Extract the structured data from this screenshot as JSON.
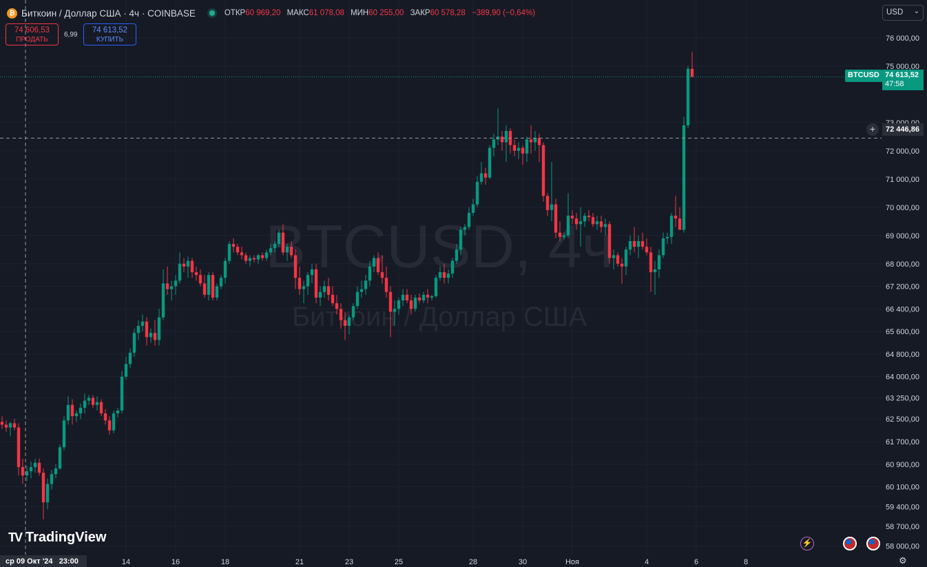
{
  "header": {
    "title": "Биткоин / Доллар США · 4ч · COINBASE",
    "ohlc": [
      {
        "key": "ОТКР",
        "value": "60 969,20"
      },
      {
        "key": "МАКС",
        "value": "61 078,08"
      },
      {
        "key": "МИН",
        "value": "60 255,00"
      },
      {
        "key": "ЗАКР",
        "value": "60 578,28"
      }
    ],
    "change": "−389,90 (−0,64%)"
  },
  "trade": {
    "sell_price": "74 606,53",
    "sell_label": "ПРОДАТЬ",
    "spread": "6,99",
    "buy_price": "74 613,52",
    "buy_label": "КУПИТЬ"
  },
  "currency": "USD",
  "logo": "TradingView",
  "watermark": {
    "symbol": "BTCUSD, 4ч",
    "name": "Биткоин / Доллар США"
  },
  "price_tag": {
    "symbol": "BTCUSD",
    "price": "74 613,52",
    "countdown": "47:58"
  },
  "crosshair": {
    "price": "72 446,86",
    "date": "ср 09 Окт '24",
    "time": "23:00"
  },
  "colors": {
    "up": "#089981",
    "down": "#f23645",
    "background": "#161a25"
  },
  "chart_data": {
    "type": "candlestick",
    "symbol": "BTCUSD",
    "timeframe": "4h",
    "ylim": [
      57700,
      76800
    ],
    "current_price": 74613.52,
    "crosshair_price": 72446.86,
    "y_ticks": [
      {
        "value": 76000,
        "label": "76 000,00"
      },
      {
        "value": 75000,
        "label": "75 000,00"
      },
      {
        "value": 73000,
        "label": "73 000,00"
      },
      {
        "value": 72000,
        "label": "72 000,00"
      },
      {
        "value": 71000,
        "label": "71 000,00"
      },
      {
        "value": 70000,
        "label": "70 000,00"
      },
      {
        "value": 69000,
        "label": "69 000,00"
      },
      {
        "value": 68000,
        "label": "68 000,00"
      },
      {
        "value": 67200,
        "label": "67 200,00"
      },
      {
        "value": 66400,
        "label": "66 400,00"
      },
      {
        "value": 65600,
        "label": "65 600,00"
      },
      {
        "value": 64800,
        "label": "64 800,00"
      },
      {
        "value": 64000,
        "label": "64 000,00"
      },
      {
        "value": 63250,
        "label": "63 250,00"
      },
      {
        "value": 62500,
        "label": "62 500,00"
      },
      {
        "value": 61700,
        "label": "61 700,00"
      },
      {
        "value": 60900,
        "label": "60 900,00"
      },
      {
        "value": 60100,
        "label": "60 100,00"
      },
      {
        "value": 59400,
        "label": "59 400,00"
      },
      {
        "value": 58700,
        "label": "58 700,00"
      },
      {
        "value": 58000,
        "label": "58 000,00"
      }
    ],
    "x_ticks": [
      {
        "index": 30,
        "label": "14"
      },
      {
        "index": 42,
        "label": "16"
      },
      {
        "index": 54,
        "label": "18"
      },
      {
        "index": 72,
        "label": "21"
      },
      {
        "index": 84,
        "label": "23"
      },
      {
        "index": 96,
        "label": "25"
      },
      {
        "index": 114,
        "label": "28"
      },
      {
        "index": 126,
        "label": "30"
      },
      {
        "index": 138,
        "label": "Ноя"
      },
      {
        "index": 156,
        "label": "4"
      },
      {
        "index": 168,
        "label": "6"
      },
      {
        "index": 180,
        "label": "8"
      }
    ],
    "candles": [
      [
        62400,
        62600,
        62150,
        62300
      ],
      [
        62300,
        62450,
        62050,
        62200
      ],
      [
        62200,
        62400,
        61900,
        62350
      ],
      [
        62350,
        62500,
        62100,
        62200
      ],
      [
        62200,
        62350,
        60500,
        60800
      ],
      [
        60800,
        61100,
        60200,
        60500
      ],
      [
        60500,
        60850,
        60300,
        60650
      ],
      [
        60650,
        61000,
        60400,
        60800
      ],
      [
        60800,
        61100,
        60600,
        60950
      ],
      [
        60950,
        61100,
        60500,
        60600
      ],
      [
        60600,
        60750,
        58950,
        59550
      ],
      [
        59550,
        60400,
        59300,
        60200
      ],
      [
        60200,
        60700,
        60000,
        60550
      ],
      [
        60550,
        60900,
        60400,
        60750
      ],
      [
        60750,
        61600,
        60700,
        61500
      ],
      [
        61500,
        62600,
        61400,
        62450
      ],
      [
        62450,
        63300,
        62300,
        63000
      ],
      [
        63000,
        63200,
        62300,
        62600
      ],
      [
        62600,
        62800,
        62400,
        62700
      ],
      [
        62700,
        63050,
        62500,
        62900
      ],
      [
        62900,
        63400,
        62700,
        63150
      ],
      [
        63150,
        63350,
        63000,
        63250
      ],
      [
        63250,
        63350,
        62900,
        63000
      ],
      [
        63000,
        63300,
        62800,
        63100
      ],
      [
        63100,
        63200,
        62600,
        62700
      ],
      [
        62700,
        62850,
        62300,
        62450
      ],
      [
        62450,
        62600,
        61950,
        62100
      ],
      [
        62100,
        62800,
        62000,
        62700
      ],
      [
        62700,
        62900,
        62550,
        62800
      ],
      [
        62800,
        64200,
        62700,
        64000
      ],
      [
        64000,
        64700,
        63900,
        64450
      ],
      [
        64450,
        65000,
        64300,
        64850
      ],
      [
        64850,
        65700,
        64700,
        65550
      ],
      [
        65550,
        66000,
        65300,
        65800
      ],
      [
        65800,
        66200,
        65600,
        65950
      ],
      [
        65950,
        66100,
        65100,
        65400
      ],
      [
        65400,
        65700,
        65200,
        65550
      ],
      [
        65550,
        66000,
        65100,
        65300
      ],
      [
        65300,
        66400,
        65100,
        66100
      ],
      [
        66100,
        67800,
        66000,
        67300
      ],
      [
        67300,
        67900,
        66900,
        67100
      ],
      [
        67100,
        67400,
        66700,
        67200
      ],
      [
        67200,
        67600,
        66900,
        67400
      ],
      [
        67400,
        68400,
        67300,
        68000
      ],
      [
        68000,
        68200,
        67700,
        67900
      ],
      [
        67900,
        68250,
        67500,
        68100
      ],
      [
        68100,
        68200,
        67500,
        67700
      ],
      [
        67700,
        67900,
        67400,
        67600
      ],
      [
        67600,
        67800,
        67200,
        67300
      ],
      [
        67300,
        67600,
        66800,
        66900
      ],
      [
        66900,
        67700,
        66700,
        67600
      ],
      [
        67600,
        67700,
        66700,
        66800
      ],
      [
        66800,
        67300,
        66700,
        67200
      ],
      [
        67200,
        67600,
        67100,
        67500
      ],
      [
        67500,
        68200,
        67300,
        68100
      ],
      [
        68100,
        68800,
        68000,
        68700
      ],
      [
        68700,
        68900,
        68400,
        68600
      ],
      [
        68600,
        68700,
        68300,
        68400
      ],
      [
        68400,
        68600,
        68150,
        68300
      ],
      [
        68300,
        68400,
        68000,
        68100
      ],
      [
        68100,
        68300,
        67900,
        68200
      ],
      [
        68200,
        68300,
        68050,
        68150
      ],
      [
        68150,
        68350,
        68000,
        68300
      ],
      [
        68300,
        68400,
        68100,
        68200
      ],
      [
        68200,
        68500,
        68100,
        68400
      ],
      [
        68400,
        68700,
        68300,
        68550
      ],
      [
        68550,
        68800,
        68400,
        68700
      ],
      [
        68700,
        69200,
        68600,
        69100
      ],
      [
        69100,
        69400,
        68300,
        68400
      ],
      [
        68400,
        68700,
        68100,
        68600
      ],
      [
        68600,
        68800,
        68200,
        68300
      ],
      [
        68300,
        68500,
        67100,
        67500
      ],
      [
        67500,
        67900,
        66900,
        67100
      ],
      [
        67100,
        67400,
        66600,
        67200
      ],
      [
        67200,
        67700,
        66900,
        67600
      ],
      [
        67600,
        68000,
        67300,
        67800
      ],
      [
        67800,
        68000,
        66600,
        66800
      ],
      [
        66800,
        67200,
        66500,
        67000
      ],
      [
        67000,
        67400,
        66800,
        67200
      ],
      [
        67200,
        67500,
        66700,
        66900
      ],
      [
        66900,
        67200,
        66500,
        66600
      ],
      [
        66600,
        66900,
        66200,
        66400
      ],
      [
        66400,
        66600,
        65700,
        66000
      ],
      [
        66000,
        66300,
        65300,
        65800
      ],
      [
        65800,
        66200,
        65500,
        66100
      ],
      [
        66100,
        66600,
        66000,
        66500
      ],
      [
        66500,
        67200,
        66400,
        67000
      ],
      [
        67000,
        67400,
        66800,
        67100
      ],
      [
        67100,
        67600,
        66900,
        67400
      ],
      [
        67400,
        68100,
        67200,
        67900
      ],
      [
        67900,
        68300,
        67700,
        68200
      ],
      [
        68200,
        68400,
        67600,
        67700
      ],
      [
        67700,
        68300,
        67300,
        67500
      ],
      [
        67500,
        67900,
        66800,
        67000
      ],
      [
        67000,
        67200,
        65400,
        66300
      ],
      [
        66300,
        66700,
        65800,
        66400
      ],
      [
        66400,
        66800,
        66200,
        66700
      ],
      [
        66700,
        67100,
        66500,
        66900
      ],
      [
        66900,
        67100,
        66600,
        66700
      ],
      [
        66700,
        66900,
        66200,
        66400
      ],
      [
        66400,
        66900,
        66300,
        66800
      ],
      [
        66800,
        66950,
        66600,
        66700
      ],
      [
        66700,
        67000,
        66600,
        66900
      ],
      [
        66900,
        67100,
        66600,
        66800
      ],
      [
        66800,
        66900,
        66700,
        66850
      ],
      [
        66850,
        67600,
        66800,
        67500
      ],
      [
        67500,
        67900,
        67400,
        67700
      ],
      [
        67700,
        68000,
        67300,
        67500
      ],
      [
        67500,
        67800,
        67300,
        67650
      ],
      [
        67650,
        68200,
        67500,
        68100
      ],
      [
        68100,
        68700,
        68000,
        68500
      ],
      [
        68500,
        69300,
        68300,
        69200
      ],
      [
        69200,
        69400,
        69000,
        69300
      ],
      [
        69300,
        70000,
        69200,
        69800
      ],
      [
        69800,
        70300,
        69700,
        70100
      ],
      [
        70100,
        71100,
        70000,
        70900
      ],
      [
        70900,
        71600,
        70800,
        71200
      ],
      [
        71200,
        71400,
        70800,
        71050
      ],
      [
        71050,
        72200,
        71000,
        72100
      ],
      [
        72100,
        72600,
        71800,
        72400
      ],
      [
        72400,
        73500,
        72200,
        72500
      ],
      [
        72500,
        72700,
        72000,
        72300
      ],
      [
        72300,
        72900,
        71600,
        72700
      ],
      [
        72700,
        72800,
        71900,
        72200
      ],
      [
        72200,
        72400,
        71800,
        72000
      ],
      [
        72000,
        72300,
        71700,
        72100
      ],
      [
        72100,
        72200,
        71500,
        71900
      ],
      [
        71900,
        72500,
        71600,
        72400
      ],
      [
        72400,
        72900,
        71900,
        72300
      ],
      [
        72300,
        72700,
        72000,
        72450
      ],
      [
        72450,
        72600,
        71600,
        72200
      ],
      [
        72200,
        72300,
        70200,
        70400
      ],
      [
        70400,
        70500,
        69700,
        69900
      ],
      [
        69900,
        71600,
        69500,
        70100
      ],
      [
        70100,
        70300,
        68900,
        69100
      ],
      [
        69100,
        69500,
        68800,
        68950
      ],
      [
        68950,
        69100,
        68850,
        69000
      ],
      [
        69000,
        70500,
        68900,
        69700
      ],
      [
        69700,
        69900,
        69400,
        69600
      ],
      [
        69600,
        69800,
        69200,
        69400
      ],
      [
        69400,
        70000,
        68600,
        69500
      ],
      [
        69500,
        69800,
        69300,
        69700
      ],
      [
        69700,
        69900,
        69500,
        69650
      ],
      [
        69650,
        69800,
        69300,
        69400
      ],
      [
        69400,
        69700,
        69200,
        69500
      ],
      [
        69500,
        69700,
        69100,
        69300
      ],
      [
        69300,
        69600,
        69000,
        69400
      ],
      [
        69400,
        69500,
        68000,
        68200
      ],
      [
        68200,
        68500,
        67800,
        68300
      ],
      [
        68300,
        68400,
        67900,
        68000
      ],
      [
        68000,
        68200,
        67300,
        67900
      ],
      [
        67900,
        68600,
        67600,
        68500
      ],
      [
        68500,
        69000,
        68300,
        68800
      ],
      [
        68800,
        69300,
        68400,
        68600
      ],
      [
        68600,
        69000,
        68200,
        68800
      ],
      [
        68800,
        69100,
        68500,
        68600
      ],
      [
        68600,
        68900,
        68300,
        68400
      ],
      [
        68400,
        68600,
        67000,
        67700
      ],
      [
        67700,
        68100,
        66900,
        67800
      ],
      [
        67800,
        68500,
        67500,
        68300
      ],
      [
        68300,
        69100,
        68200,
        68900
      ],
      [
        68900,
        69100,
        68700,
        68950
      ],
      [
        68950,
        69800,
        68700,
        69700
      ],
      [
        69700,
        70400,
        69300,
        69600
      ],
      [
        69600,
        70000,
        69200,
        69200
      ],
      [
        69200,
        73200,
        69100,
        72900
      ],
      [
        72900,
        75000,
        72800,
        74900
      ],
      [
        74900,
        75500,
        74600,
        74613.52
      ]
    ]
  }
}
